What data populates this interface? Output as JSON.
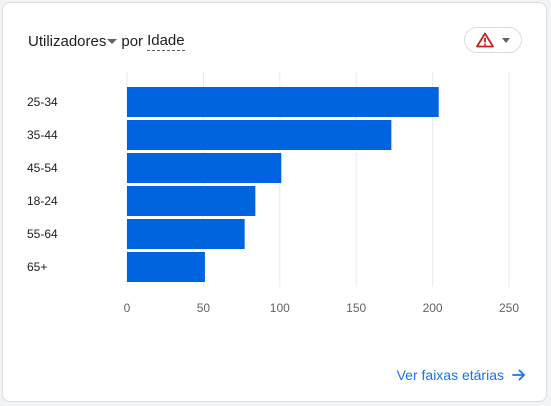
{
  "header": {
    "metric": "Utilizadores",
    "by": "por",
    "dimension": "Idade"
  },
  "footer": {
    "link_label": "Ver faixas etárias"
  },
  "colors": {
    "bar": "#0064e0",
    "warning": "#c5221f",
    "link": "#1a73e8"
  },
  "chart_data": {
    "type": "bar",
    "orientation": "horizontal",
    "categories": [
      "25-34",
      "35-44",
      "45-54",
      "18-24",
      "55-64",
      "65+"
    ],
    "values": [
      204,
      173,
      101,
      84,
      77,
      51
    ],
    "xlim": [
      0,
      250
    ],
    "xticks": [
      0,
      50,
      100,
      150,
      200,
      250
    ],
    "grid": true
  }
}
